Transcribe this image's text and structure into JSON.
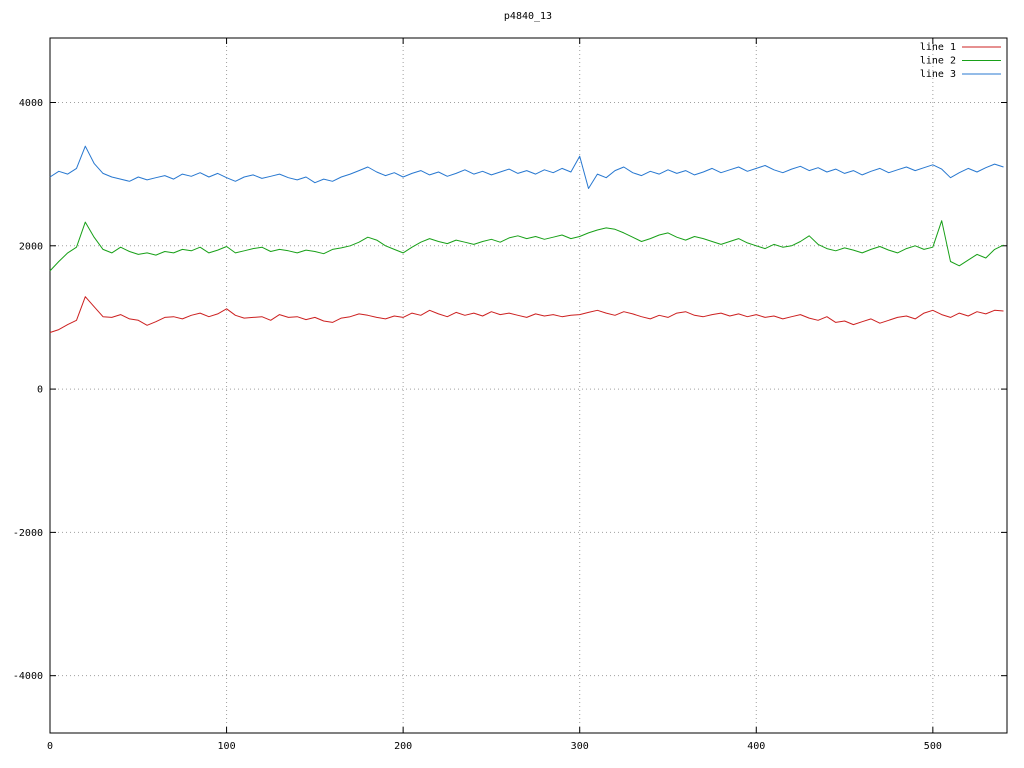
{
  "chart_data": {
    "type": "line",
    "title": "p4840_13",
    "xlabel": "",
    "ylabel": "",
    "xlim": [
      0,
      542
    ],
    "ylim": [
      -4800,
      4900
    ],
    "xticks": [
      0,
      100,
      200,
      300,
      400,
      500
    ],
    "yticks": [
      -4000,
      -2000,
      0,
      2000,
      4000
    ],
    "grid": true,
    "grid_style": "dotted",
    "grid_color": "#a0a0a0",
    "axis_color": "#000000",
    "background": "#ffffff",
    "legend_position": "top-right",
    "x_start": 0,
    "x_step": 5,
    "series": [
      {
        "name": "line 1",
        "color": "#cc2020",
        "values": [
          790,
          830,
          900,
          960,
          1290,
          1150,
          1010,
          1000,
          1040,
          980,
          960,
          890,
          940,
          1000,
          1010,
          980,
          1030,
          1060,
          1010,
          1050,
          1120,
          1030,
          990,
          1000,
          1010,
          960,
          1040,
          1000,
          1010,
          970,
          1000,
          950,
          930,
          990,
          1010,
          1050,
          1030,
          1000,
          980,
          1020,
          1000,
          1060,
          1030,
          1100,
          1050,
          1010,
          1070,
          1030,
          1060,
          1020,
          1080,
          1040,
          1060,
          1030,
          1000,
          1050,
          1020,
          1040,
          1010,
          1030,
          1040,
          1070,
          1100,
          1060,
          1030,
          1080,
          1050,
          1010,
          980,
          1030,
          1000,
          1060,
          1080,
          1030,
          1010,
          1040,
          1060,
          1020,
          1050,
          1010,
          1040,
          1000,
          1020,
          980,
          1010,
          1040,
          990,
          960,
          1010,
          930,
          950,
          900,
          940,
          980,
          920,
          960,
          1000,
          1020,
          980,
          1060,
          1100,
          1040,
          1000,
          1060,
          1020,
          1080,
          1050,
          1100,
          1090
        ]
      },
      {
        "name": "line 2",
        "color": "#18a018",
        "values": [
          1650,
          1780,
          1900,
          1980,
          2330,
          2120,
          1950,
          1900,
          1980,
          1920,
          1880,
          1900,
          1870,
          1920,
          1900,
          1950,
          1930,
          1980,
          1900,
          1940,
          1990,
          1900,
          1930,
          1960,
          1980,
          1920,
          1950,
          1930,
          1900,
          1940,
          1920,
          1890,
          1950,
          1970,
          2000,
          2050,
          2120,
          2080,
          2000,
          1950,
          1900,
          1980,
          2050,
          2100,
          2060,
          2030,
          2080,
          2050,
          2020,
          2060,
          2090,
          2050,
          2110,
          2140,
          2100,
          2130,
          2090,
          2120,
          2150,
          2100,
          2130,
          2180,
          2220,
          2250,
          2230,
          2180,
          2120,
          2060,
          2100,
          2150,
          2180,
          2120,
          2080,
          2130,
          2100,
          2060,
          2020,
          2060,
          2100,
          2040,
          2000,
          1960,
          2020,
          1980,
          2000,
          2060,
          2140,
          2020,
          1960,
          1930,
          1970,
          1940,
          1900,
          1950,
          1990,
          1940,
          1900,
          1960,
          2000,
          1950,
          1980,
          2350,
          1780,
          1720,
          1800,
          1880,
          1830,
          1950,
          2010
        ]
      },
      {
        "name": "line 3",
        "color": "#2878d0",
        "values": [
          2960,
          3040,
          3000,
          3080,
          3390,
          3150,
          3010,
          2960,
          2930,
          2900,
          2960,
          2920,
          2950,
          2980,
          2930,
          3000,
          2970,
          3020,
          2960,
          3010,
          2950,
          2900,
          2960,
          2990,
          2940,
          2970,
          3000,
          2950,
          2920,
          2960,
          2880,
          2930,
          2900,
          2960,
          3000,
          3050,
          3100,
          3030,
          2980,
          3020,
          2960,
          3010,
          3050,
          2990,
          3030,
          2970,
          3010,
          3060,
          3000,
          3040,
          2990,
          3030,
          3070,
          3010,
          3050,
          3000,
          3060,
          3020,
          3080,
          3030,
          3250,
          2800,
          3000,
          2950,
          3050,
          3100,
          3020,
          2980,
          3040,
          3000,
          3060,
          3010,
          3050,
          2990,
          3030,
          3080,
          3020,
          3060,
          3100,
          3040,
          3080,
          3120,
          3060,
          3020,
          3070,
          3110,
          3050,
          3090,
          3030,
          3070,
          3010,
          3050,
          2990,
          3040,
          3080,
          3020,
          3060,
          3100,
          3050,
          3090,
          3130,
          3070,
          2950,
          3020,
          3080,
          3030,
          3090,
          3140,
          3100
        ]
      }
    ]
  }
}
